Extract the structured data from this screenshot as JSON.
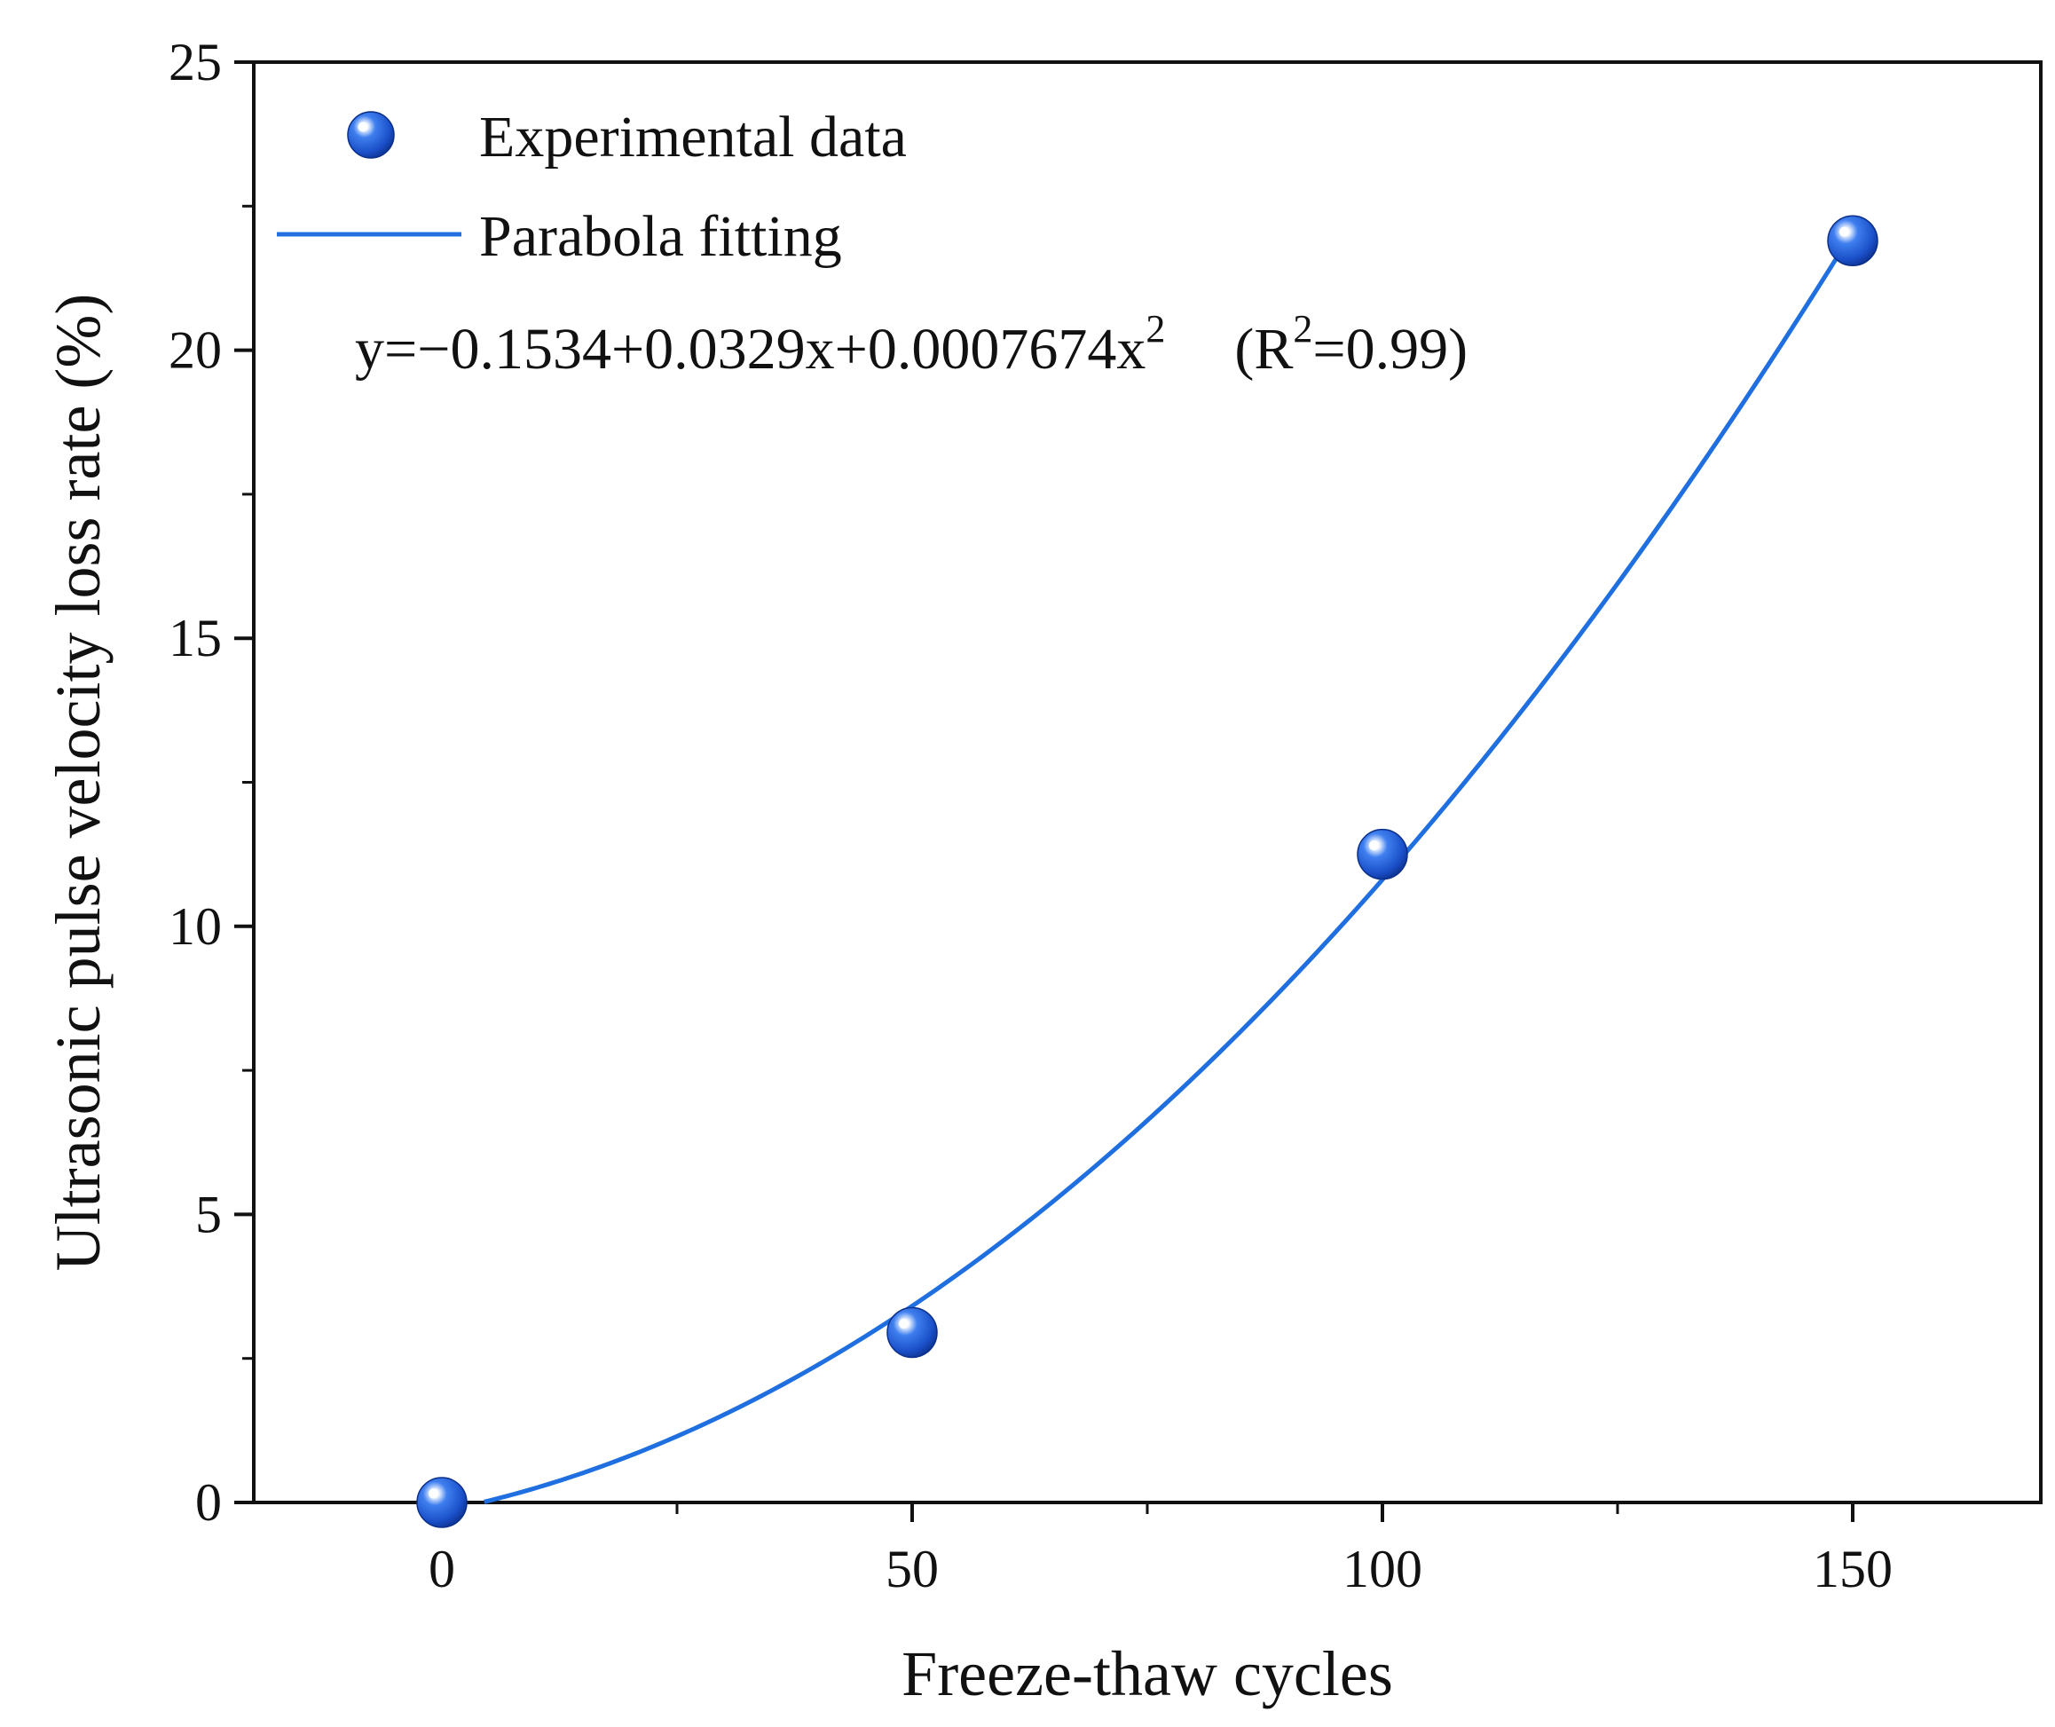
{
  "chart_data": {
    "type": "scatter",
    "title": "",
    "xlabel": "Freeze-thaw cycles",
    "ylabel": "Ultrasonic pulse velocity loss rate (%)",
    "xlim": [
      -20,
      170
    ],
    "ylim": [
      0,
      25
    ],
    "xticks": [
      0,
      50,
      100,
      150
    ],
    "xtick_labels": [
      "0",
      "50",
      "100",
      "150"
    ],
    "xminor": [
      25,
      75,
      125
    ],
    "yticks": [
      0,
      5,
      10,
      15,
      20,
      25
    ],
    "ytick_labels": [
      "0",
      "5",
      "10",
      "15",
      "20",
      "25"
    ],
    "yminor": [
      2.5,
      7.5,
      12.5,
      17.5,
      22.5
    ],
    "grid": false,
    "legend_position": "top-left",
    "series": [
      {
        "name": "Experimental data",
        "kind": "scatter",
        "x": [
          0,
          50,
          100,
          150
        ],
        "y": [
          0.0,
          2.95,
          11.25,
          21.9
        ]
      },
      {
        "name": "Parabola fitting",
        "kind": "line",
        "x_range": [
          0,
          150
        ],
        "coefficients": [
          -0.1534,
          0.0329,
          0.0007674
        ]
      }
    ],
    "annotations": {
      "equation": "y=−0.1534+0.0329x+0.0007674x",
      "equation_sup": "2",
      "r2_prefix": "(R",
      "r2_sup": "2",
      "r2_suffix": "=0.99)"
    },
    "colors": {
      "marker": "#1a56d6",
      "marker_dark": "#0b2f8a",
      "marker_highlight": "#ffffff",
      "line": "#1f6fe0",
      "axis": "#111111"
    }
  }
}
